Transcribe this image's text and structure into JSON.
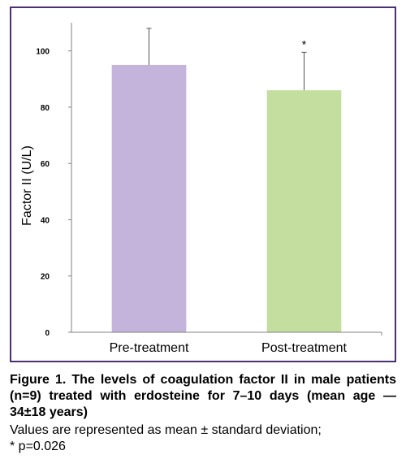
{
  "chart_data": {
    "type": "bar",
    "categories": [
      "Pre-treatment",
      "Post-treatment"
    ],
    "values": [
      95,
      86
    ],
    "error_bars": [
      13,
      13.5
    ],
    "significance": [
      "",
      "*"
    ],
    "colors": [
      "#c4b4dc",
      "#c4dea0"
    ],
    "ylabel": "Factor II (U/L)",
    "xlabel": "",
    "ylim": [
      0,
      110
    ],
    "yticks": [
      0,
      20,
      40,
      60,
      80,
      100
    ],
    "grid": false
  },
  "caption": {
    "title": "Figure 1. The levels of coagulation factor II in male patients (n=9) treated with erdosteine for 7–10 days (mean age — 34±18 years)",
    "note_line1": "Values are represented as mean ± standard deviation;",
    "note_line2": "* p=0.026"
  },
  "colors": {
    "frame": "#4b2f73",
    "axis": "#808080"
  }
}
